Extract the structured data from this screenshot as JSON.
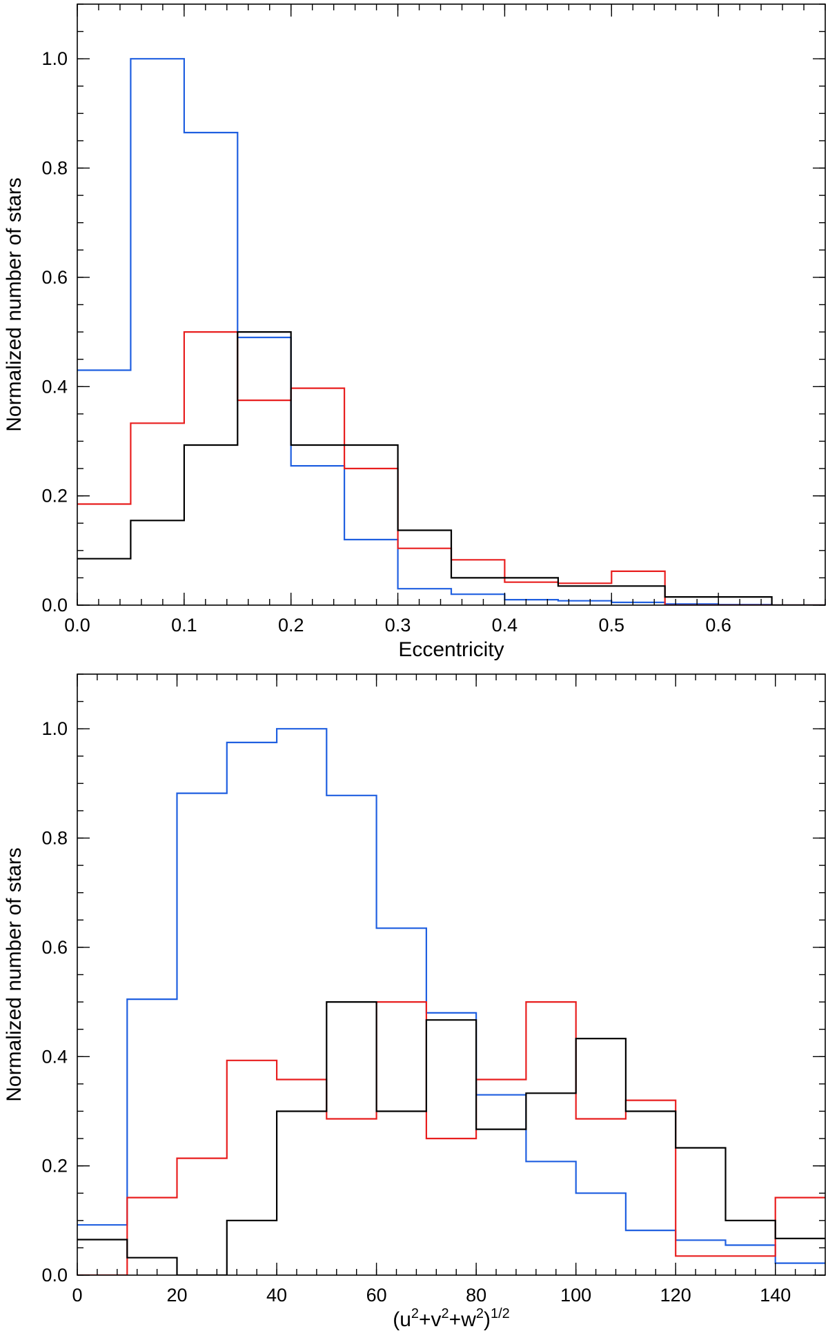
{
  "chart_data": [
    {
      "type": "histogram",
      "xlabel": "Eccentricity",
      "ylabel": "Normalized number of stars",
      "xlim": [
        0.0,
        0.7
      ],
      "ylim": [
        0.0,
        1.1
      ],
      "x_ticks": [
        0.0,
        0.1,
        0.2,
        0.3,
        0.4,
        0.5,
        0.6
      ],
      "x_tick_labels": [
        "0.0",
        "0.1",
        "0.2",
        "0.3",
        "0.4",
        "0.5",
        "0.6"
      ],
      "y_ticks": [
        0.0,
        0.2,
        0.4,
        0.6,
        0.8,
        1.0
      ],
      "y_tick_labels": [
        "0.0",
        "0.2",
        "0.4",
        "0.6",
        "0.8",
        "1.0"
      ],
      "bin_edges": [
        0.0,
        0.05,
        0.1,
        0.15,
        0.2,
        0.25,
        0.3,
        0.35,
        0.4,
        0.45,
        0.5,
        0.55,
        0.6,
        0.65,
        0.7
      ],
      "series": [
        {
          "name": "blue",
          "color": "#1f5fe0",
          "values": [
            0.43,
            1.0,
            0.865,
            0.49,
            0.255,
            0.12,
            0.03,
            0.02,
            0.01,
            0.008,
            0.005,
            0.002,
            0.001,
            0.0
          ]
        },
        {
          "name": "red",
          "color": "#e81e1e",
          "values": [
            0.185,
            0.333,
            0.5,
            0.375,
            0.397,
            0.25,
            0.104,
            0.083,
            0.042,
            0.04,
            0.062,
            0.0,
            0.0,
            0.0
          ]
        },
        {
          "name": "black",
          "color": "#000000",
          "values": [
            0.085,
            0.155,
            0.293,
            0.5,
            0.293,
            0.293,
            0.137,
            0.05,
            0.05,
            0.035,
            0.035,
            0.015,
            0.015,
            0.0
          ]
        }
      ]
    },
    {
      "type": "histogram",
      "xlabel": "(u2+v2+w2)1/2",
      "xlabel_base": "u",
      "xlabel_parts": [
        "(u",
        "2",
        "+v",
        "2",
        "+w",
        "2",
        ")",
        "1/2"
      ],
      "ylabel": "Normalized number of stars",
      "xlim": [
        0,
        150
      ],
      "ylim": [
        0.0,
        1.1
      ],
      "x_ticks": [
        0,
        20,
        40,
        60,
        80,
        100,
        120,
        140
      ],
      "x_tick_labels": [
        "0",
        "20",
        "40",
        "60",
        "80",
        "100",
        "120",
        "140"
      ],
      "y_ticks": [
        0.0,
        0.2,
        0.4,
        0.6,
        0.8,
        1.0
      ],
      "y_tick_labels": [
        "0.0",
        "0.2",
        "0.4",
        "0.6",
        "0.8",
        "1.0"
      ],
      "bin_edges": [
        0,
        10,
        20,
        30,
        40,
        50,
        60,
        70,
        80,
        90,
        100,
        110,
        120,
        130,
        140,
        150
      ],
      "series": [
        {
          "name": "blue",
          "color": "#1f5fe0",
          "values": [
            0.092,
            0.505,
            0.882,
            0.975,
            1.0,
            0.878,
            0.635,
            0.48,
            0.33,
            0.208,
            0.15,
            0.082,
            0.064,
            0.055,
            0.022
          ]
        },
        {
          "name": "red",
          "color": "#e81e1e",
          "values": [
            0.0,
            0.142,
            0.214,
            0.393,
            0.358,
            0.286,
            0.5,
            0.25,
            0.358,
            0.5,
            0.286,
            0.32,
            0.035,
            0.035,
            0.142
          ]
        },
        {
          "name": "black",
          "color": "#000000",
          "values": [
            0.065,
            0.032,
            0.0,
            0.1,
            0.3,
            0.5,
            0.3,
            0.467,
            0.267,
            0.333,
            0.433,
            0.3,
            0.233,
            0.1,
            0.067
          ]
        }
      ]
    }
  ]
}
